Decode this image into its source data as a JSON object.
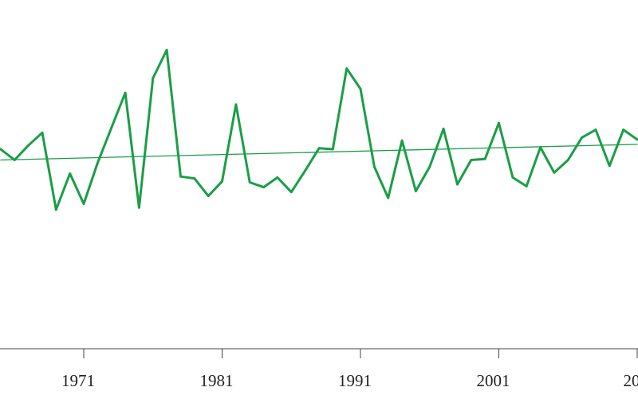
{
  "chart_data": {
    "type": "line",
    "title": "",
    "xlabel": "",
    "ylabel": "",
    "grid": false,
    "x_ticks": [
      "1971",
      "1981",
      "1991",
      "2001",
      "20"
    ],
    "series": [
      {
        "color": "#1a9e46",
        "x": [
          1965,
          1966,
          1967,
          1968,
          1969,
          1970,
          1971,
          1972,
          1973,
          1974,
          1975,
          1976,
          1977,
          1978,
          1979,
          1980,
          1981,
          1982,
          1983,
          1984,
          1985,
          1986,
          1987,
          1988,
          1989,
          1990,
          1991,
          1992,
          1993,
          1994,
          1995,
          1996,
          1997,
          1998,
          1999,
          2000,
          2001,
          2002,
          2003,
          2004,
          2005,
          2006,
          2007,
          2008,
          2009,
          2010,
          2011
        ],
        "values": [
          0.18,
          0.07,
          0.22,
          0.35,
          -0.44,
          -0.07,
          -0.38,
          0.04,
          0.4,
          0.76,
          -0.42,
          0.91,
          1.2,
          -0.1,
          -0.12,
          -0.3,
          -0.15,
          0.64,
          -0.16,
          -0.21,
          -0.11,
          -0.26,
          -0.04,
          0.19,
          0.18,
          1.01,
          0.8,
          0.0,
          -0.32,
          0.27,
          -0.25,
          0.0,
          0.39,
          -0.18,
          0.07,
          0.08,
          0.45,
          -0.11,
          -0.2,
          0.2,
          -0.06,
          0.07,
          0.3,
          0.38,
          0.01,
          0.38,
          0.28
        ]
      },
      {
        "type": "trend",
        "color": "#1a9e46",
        "x": [
          1965,
          2011
        ],
        "values": [
          0.07,
          0.23
        ]
      }
    ]
  }
}
